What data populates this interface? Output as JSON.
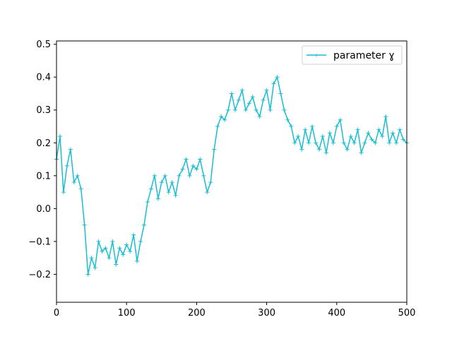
{
  "chart_data": {
    "type": "line",
    "title": "",
    "xlabel": "",
    "ylabel": "",
    "xlim": [
      0,
      500
    ],
    "ylim": [
      -0.285,
      0.51
    ],
    "grid": false,
    "legend_position": "top-right",
    "x_ticks": [
      0,
      100,
      200,
      300,
      400,
      500
    ],
    "y_ticks": [
      -0.2,
      -0.1,
      0.0,
      0.1,
      0.2,
      0.3,
      0.4,
      0.5
    ],
    "x_tick_labels": [
      "0",
      "100",
      "200",
      "300",
      "400",
      "500"
    ],
    "y_tick_labels": [
      "−0.2",
      "−0.1",
      "0.0",
      "0.1",
      "0.2",
      "0.3",
      "0.4",
      "0.5"
    ],
    "series": [
      {
        "name": "parameter ɣ",
        "color": "#17becf",
        "marker": "plus",
        "x": [
          0,
          5,
          10,
          15,
          20,
          25,
          30,
          35,
          40,
          45,
          50,
          55,
          60,
          65,
          70,
          75,
          80,
          85,
          90,
          95,
          100,
          105,
          110,
          115,
          120,
          125,
          130,
          135,
          140,
          145,
          150,
          155,
          160,
          165,
          170,
          175,
          180,
          185,
          190,
          195,
          200,
          205,
          210,
          215,
          220,
          225,
          230,
          235,
          240,
          245,
          250,
          255,
          260,
          265,
          270,
          275,
          280,
          285,
          290,
          295,
          300,
          305,
          310,
          315,
          320,
          325,
          330,
          335,
          340,
          345,
          350,
          355,
          360,
          365,
          370,
          375,
          380,
          385,
          390,
          395,
          400,
          405,
          410,
          415,
          420,
          425,
          430,
          435,
          440,
          445,
          450,
          455,
          460,
          465,
          470,
          475,
          480,
          485,
          490,
          495,
          500
        ],
        "y": [
          0.15,
          0.22,
          0.05,
          0.13,
          0.18,
          0.08,
          0.1,
          0.06,
          -0.05,
          -0.2,
          -0.15,
          -0.18,
          -0.1,
          -0.13,
          -0.12,
          -0.15,
          -0.1,
          -0.17,
          -0.12,
          -0.14,
          -0.11,
          -0.13,
          -0.08,
          -0.16,
          -0.1,
          -0.05,
          0.02,
          0.06,
          0.1,
          0.03,
          0.08,
          0.1,
          0.05,
          0.08,
          0.04,
          0.1,
          0.12,
          0.15,
          0.1,
          0.13,
          0.12,
          0.15,
          0.1,
          0.05,
          0.08,
          0.18,
          0.25,
          0.28,
          0.27,
          0.3,
          0.35,
          0.3,
          0.33,
          0.36,
          0.3,
          0.32,
          0.34,
          0.3,
          0.28,
          0.33,
          0.36,
          0.3,
          0.38,
          0.4,
          0.35,
          0.3,
          0.27,
          0.25,
          0.2,
          0.22,
          0.18,
          0.24,
          0.2,
          0.25,
          0.2,
          0.18,
          0.22,
          0.17,
          0.23,
          0.2,
          0.25,
          0.27,
          0.2,
          0.18,
          0.22,
          0.2,
          0.24,
          0.17,
          0.2,
          0.23,
          0.21,
          0.2,
          0.24,
          0.22,
          0.28,
          0.2,
          0.23,
          0.2,
          0.24,
          0.21,
          0.2
        ]
      }
    ]
  }
}
